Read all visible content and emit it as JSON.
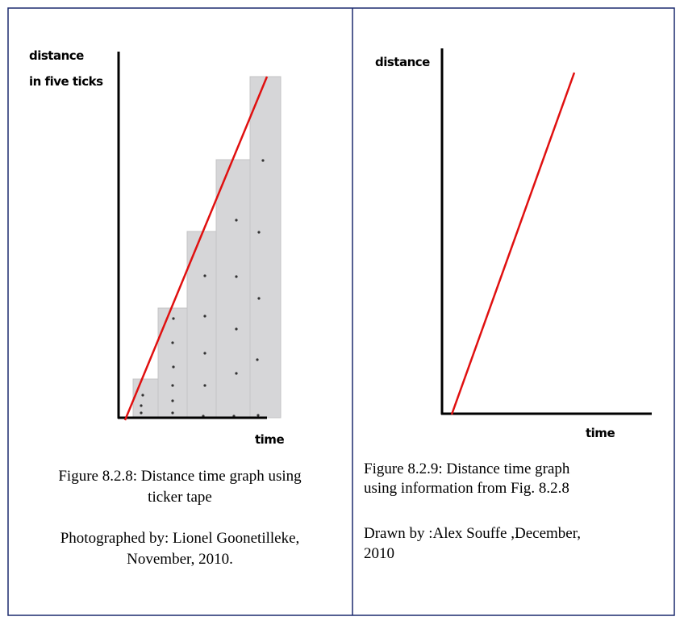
{
  "left_figure": {
    "y_label": [
      "distance",
      "in five ticks"
    ],
    "x_label": "time",
    "caption": [
      "Figure 8.2.8: Distance time graph using",
      "ticker tape"
    ],
    "credit": [
      "Photographed by: Lionel Goonetilleke,",
      "November, 2010."
    ]
  },
  "right_figure": {
    "y_label": "distance",
    "x_label": "time",
    "caption": [
      "Figure 8.2.9: Distance time graph",
      "using information from Fig. 8.2.8"
    ],
    "credit": [
      "Drawn by :Alex Souffe ,December,",
      "2010"
    ]
  }
}
